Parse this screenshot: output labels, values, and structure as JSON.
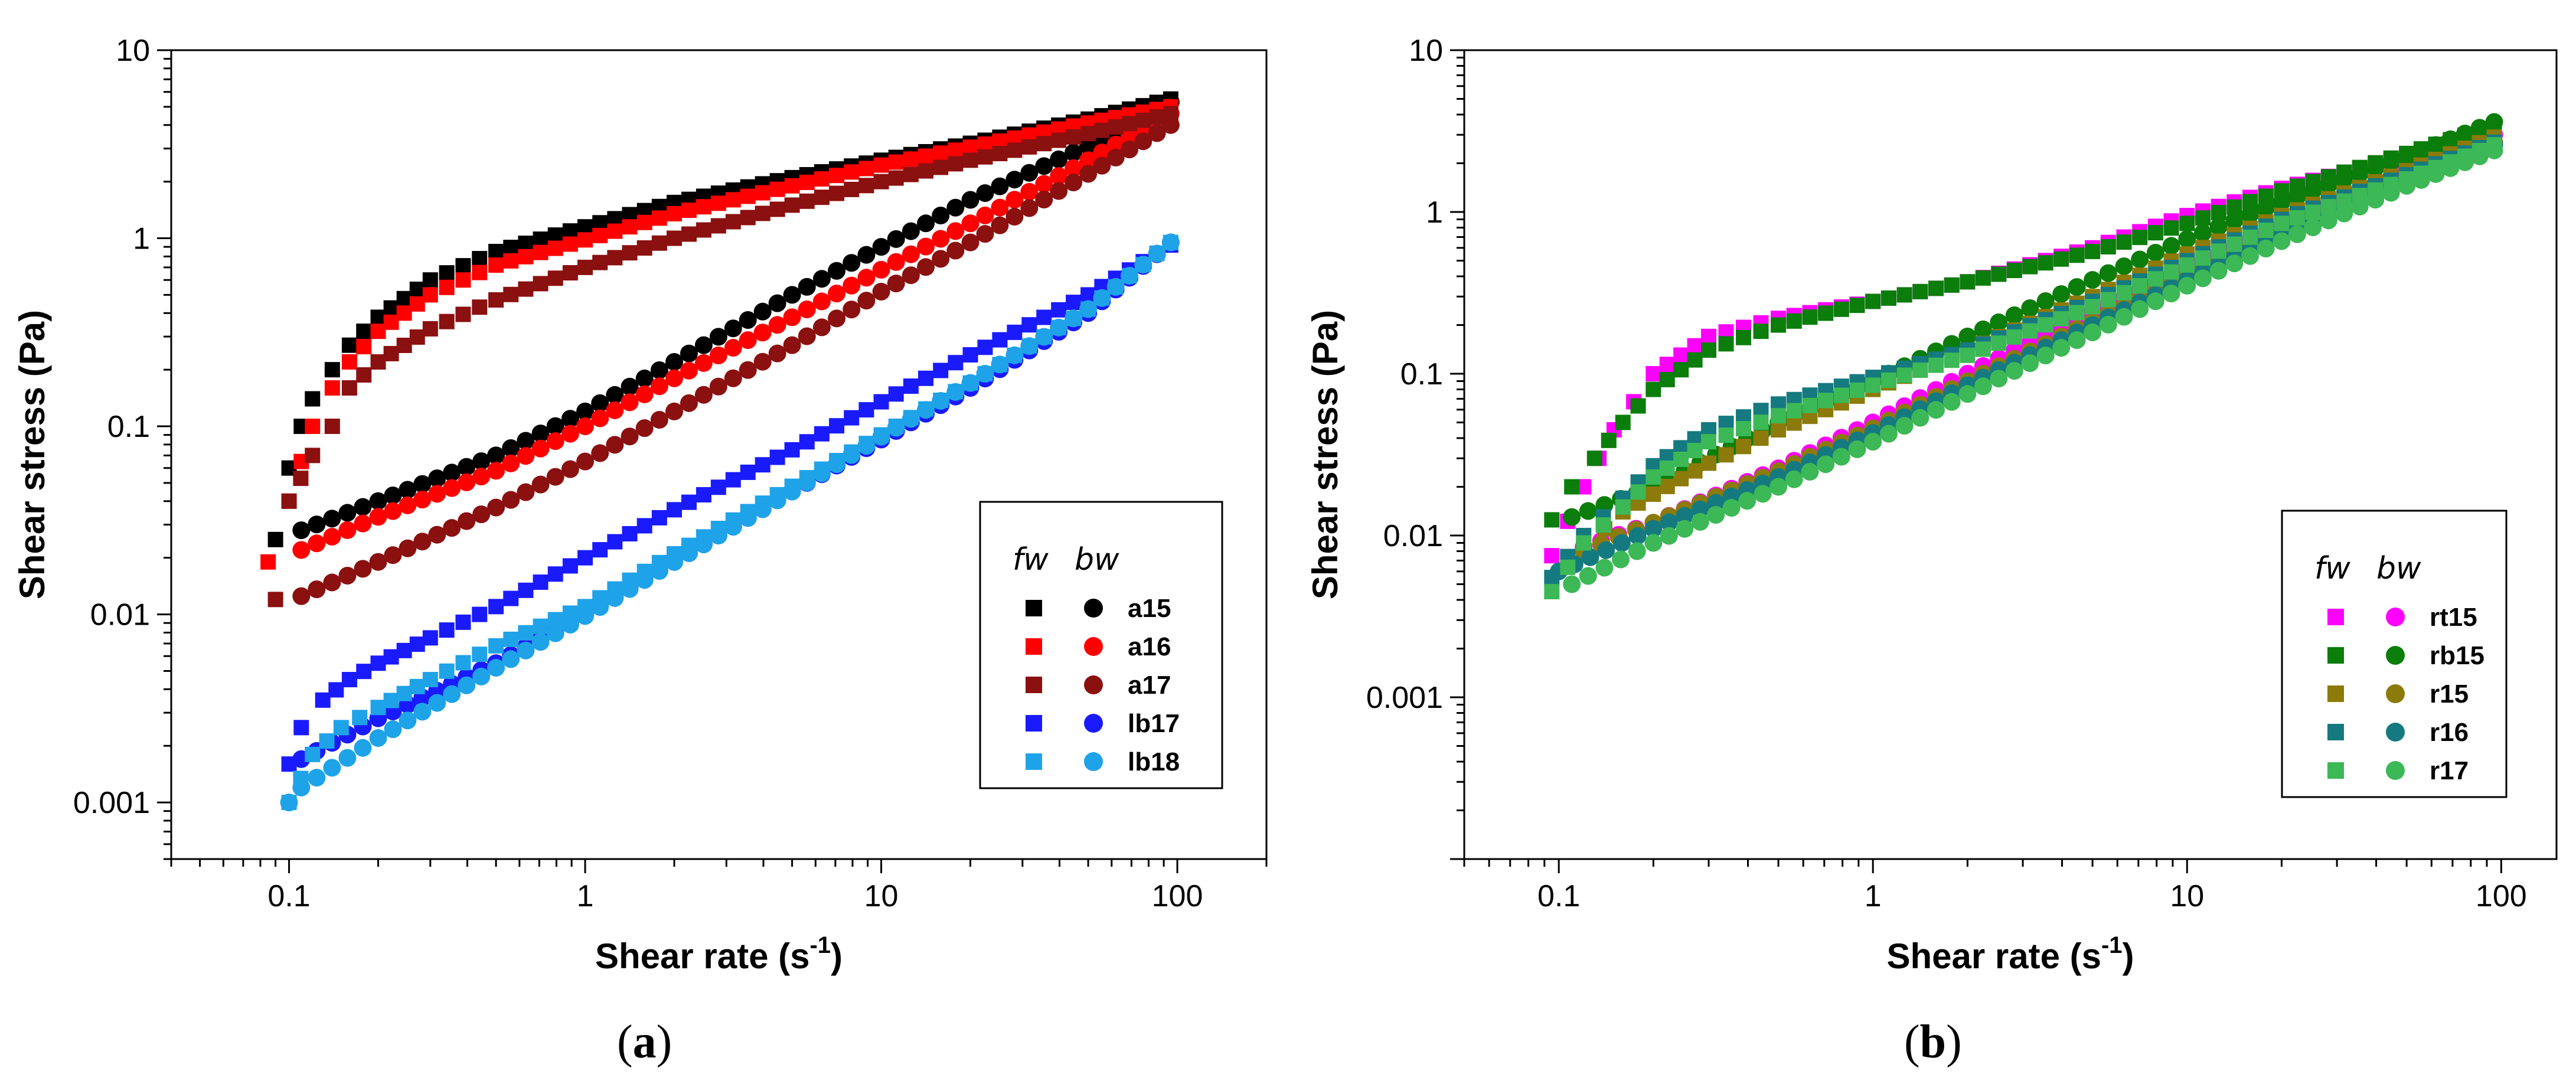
{
  "figure": {
    "panels": [
      {
        "caption_letter": "a",
        "chart_data": {
          "type": "scatter",
          "scale": "log-log",
          "xlabel": "Shear rate (s",
          "xlabel_sup": "-1",
          "xlabel_close": ")",
          "ylabel": "Shear stress (Pa)",
          "xlim": [
            0.04,
            200
          ],
          "ylim": [
            0.0005,
            10
          ],
          "xticks": [
            0.1,
            1,
            10,
            100
          ],
          "xtick_labels": [
            "0.1",
            "1",
            "10",
            "100"
          ],
          "yticks": [
            0.001,
            0.01,
            0.1,
            1,
            10
          ],
          "ytick_labels": [
            "0.001",
            "0.01",
            "0.1",
            "1",
            "10"
          ],
          "legend": {
            "position": "bottom-right",
            "header_fw": "fw",
            "header_bw": "bw",
            "entries": [
              "a15",
              "a16",
              "a17",
              "lb17",
              "lb18"
            ]
          },
          "series": [
            {
              "name": "a15",
              "color": "#000000",
              "fw": {
                "x": [
                  0.09,
                  0.1,
                  0.11,
                  0.12,
                  0.14,
                  0.16,
                  0.2,
                  0.3,
                  0.5,
                  1,
                  2,
                  5,
                  10,
                  20,
                  50,
                  95
                ],
                "y": [
                  0.025,
                  0.06,
                  0.1,
                  0.14,
                  0.2,
                  0.27,
                  0.38,
                  0.6,
                  0.85,
                  1.15,
                  1.55,
                  2.1,
                  2.6,
                  3.2,
                  4.3,
                  5.5
                ]
              },
              "bw": {
                "x": [
                  0.11,
                  0.2,
                  0.5,
                  1,
                  2,
                  5,
                  10,
                  20,
                  50,
                  95
                ],
                "y": [
                  0.028,
                  0.04,
                  0.07,
                  0.12,
                  0.22,
                  0.5,
                  0.9,
                  1.6,
                  3.1,
                  5.3
                ]
              }
            },
            {
              "name": "a16",
              "color": "#ff0000",
              "fw": {
                "x": [
                  0.085,
                  0.1,
                  0.11,
                  0.12,
                  0.14,
                  0.16,
                  0.2,
                  0.3,
                  0.5,
                  1,
                  2,
                  5,
                  10,
                  20,
                  50,
                  95
                ],
                "y": [
                  0.019,
                  0.04,
                  0.065,
                  0.1,
                  0.16,
                  0.22,
                  0.32,
                  0.5,
                  0.72,
                  0.98,
                  1.35,
                  1.9,
                  2.45,
                  3.05,
                  4.1,
                  5.0
                ]
              },
              "bw": {
                "x": [
                  0.11,
                  0.2,
                  0.5,
                  1,
                  2,
                  5,
                  10,
                  20,
                  50,
                  95
                ],
                "y": [
                  0.022,
                  0.033,
                  0.058,
                  0.1,
                  0.18,
                  0.38,
                  0.68,
                  1.2,
                  2.6,
                  4.6
                ]
              }
            },
            {
              "name": "a17",
              "color": "#8b1010",
              "fw": {
                "x": [
                  0.09,
                  0.1,
                  0.12,
                  0.14,
                  0.16,
                  0.2,
                  0.3,
                  0.5,
                  1,
                  2,
                  5,
                  10,
                  20,
                  50,
                  95
                ],
                "y": [
                  0.012,
                  0.04,
                  0.07,
                  0.1,
                  0.16,
                  0.22,
                  0.33,
                  0.47,
                  0.7,
                  1.0,
                  1.5,
                  2.0,
                  2.6,
                  3.6,
                  4.6
                ]
              },
              "bw": {
                "x": [
                  0.11,
                  0.2,
                  0.5,
                  1,
                  2,
                  5,
                  10,
                  20,
                  50,
                  95
                ],
                "y": [
                  0.0125,
                  0.019,
                  0.037,
                  0.065,
                  0.12,
                  0.27,
                  0.52,
                  0.95,
                  2.2,
                  4.0
                ]
              }
            },
            {
              "name": "lb17",
              "color": "#1a1aff",
              "fw": {
                "x": [
                  0.1,
                  0.11,
                  0.13,
                  0.16,
                  0.2,
                  0.3,
                  0.5,
                  1,
                  2,
                  5,
                  10,
                  20,
                  50,
                  95
                ],
                "y": [
                  0.0016,
                  0.0025,
                  0.0035,
                  0.0045,
                  0.0055,
                  0.0075,
                  0.011,
                  0.02,
                  0.036,
                  0.075,
                  0.135,
                  0.24,
                  0.5,
                  0.92
                ]
              },
              "bw": {
                "x": [
                  0.11,
                  0.2,
                  0.5,
                  1,
                  2,
                  5,
                  10,
                  20,
                  50,
                  95
                ],
                "y": [
                  0.0017,
                  0.0028,
                  0.0055,
                  0.01,
                  0.019,
                  0.045,
                  0.085,
                  0.16,
                  0.4,
                  0.95
                ]
              }
            },
            {
              "name": "lb18",
              "color": "#1fa3e8",
              "fw": {
                "x": [
                  0.1,
                  0.12,
                  0.15,
                  0.2,
                  0.3,
                  0.5,
                  1,
                  2,
                  5,
                  10,
                  20,
                  50,
                  95
                ],
                "y": [
                  0.001,
                  0.0018,
                  0.0025,
                  0.0032,
                  0.0045,
                  0.0068,
                  0.011,
                  0.021,
                  0.048,
                  0.09,
                  0.17,
                  0.42,
                  0.95
                ]
              },
              "bw": {
                "x": [
                  0.1,
                  0.11,
                  0.2,
                  0.5,
                  1,
                  2,
                  5,
                  10,
                  20,
                  50,
                  95
                ],
                "y": [
                  0.001,
                  0.0012,
                  0.0022,
                  0.0052,
                  0.0098,
                  0.019,
                  0.045,
                  0.088,
                  0.17,
                  0.42,
                  0.95
                ]
              }
            }
          ]
        }
      },
      {
        "caption_letter": "b",
        "chart_data": {
          "type": "scatter",
          "scale": "log-log",
          "xlabel": "Shear rate (s",
          "xlabel_sup": "-1",
          "xlabel_close": ")",
          "ylabel": "Shear stress (Pa)",
          "xlim": [
            0.05,
            150
          ],
          "ylim": [
            0.0001,
            10
          ],
          "xticks": [
            0.1,
            1,
            10,
            100
          ],
          "xtick_labels": [
            "0.1",
            "1",
            "10",
            "100"
          ],
          "yticks": [
            0.001,
            0.01,
            0.1,
            1,
            10
          ],
          "ytick_labels": [
            "0.001",
            "0.01",
            "0.1",
            "1",
            "10"
          ],
          "legend": {
            "position": "bottom-right",
            "header_fw": "fw",
            "header_bw": "bw",
            "entries": [
              "rt15",
              "rb15",
              "r15",
              "r16",
              "r17"
            ]
          },
          "series": [
            {
              "name": "rt15",
              "color": "#ff00ff",
              "fw": {
                "x": [
                  0.095,
                  0.12,
                  0.15,
                  0.2,
                  0.3,
                  0.5,
                  1,
                  2,
                  5,
                  10,
                  20,
                  50,
                  95
                ],
                "y": [
                  0.0075,
                  0.02,
                  0.045,
                  0.1,
                  0.17,
                  0.22,
                  0.28,
                  0.37,
                  0.6,
                  0.95,
                  1.4,
                  2.2,
                  3.1
                ]
              },
              "bw": {
                "x": [
                  0.12,
                  0.2,
                  0.5,
                  1,
                  2,
                  5,
                  10,
                  20,
                  50,
                  95
                ],
                "y": [
                  0.0085,
                  0.012,
                  0.026,
                  0.05,
                  0.1,
                  0.24,
                  0.45,
                  0.82,
                  1.8,
                  3.0
                ]
              }
            },
            {
              "name": "rb15",
              "color": "#0b7d0b",
              "fw": {
                "x": [
                  0.095,
                  0.11,
                  0.13,
                  0.16,
                  0.2,
                  0.3,
                  0.5,
                  1,
                  2,
                  5,
                  10,
                  20,
                  50,
                  95
                ],
                "y": [
                  0.0125,
                  0.02,
                  0.03,
                  0.05,
                  0.08,
                  0.14,
                  0.2,
                  0.28,
                  0.37,
                  0.57,
                  0.85,
                  1.35,
                  2.3,
                  3.4
                ]
              },
              "bw": {
                "x": [
                  0.11,
                  0.2,
                  0.5,
                  1,
                  2,
                  5,
                  10,
                  20,
                  50,
                  95
                ],
                "y": [
                  0.013,
                  0.02,
                  0.05,
                  0.09,
                  0.17,
                  0.38,
                  0.68,
                  1.15,
                  2.2,
                  3.6
                ]
              }
            },
            {
              "name": "r15",
              "color": "#8c7a0a",
              "fw": {
                "x": [
                  0.12,
                  0.14,
                  0.16,
                  0.2,
                  0.3,
                  0.5,
                  1,
                  2,
                  5,
                  10,
                  20,
                  50,
                  95
                ],
                "y": [
                  0.008,
                  0.011,
                  0.014,
                  0.018,
                  0.028,
                  0.045,
                  0.08,
                  0.14,
                  0.3,
                  0.55,
                  0.95,
                  1.8,
                  2.9
                ]
              },
              "bw": {
                "x": [
                  0.12,
                  0.2,
                  0.5,
                  1,
                  2,
                  5,
                  10,
                  20,
                  50,
                  95
                ],
                "y": [
                  0.008,
                  0.012,
                  0.025,
                  0.046,
                  0.09,
                  0.21,
                  0.4,
                  0.75,
                  1.6,
                  2.7
                ]
              }
            },
            {
              "name": "r16",
              "color": "#157a80",
              "fw": {
                "x": [
                  0.095,
                  0.12,
                  0.16,
                  0.2,
                  0.3,
                  0.5,
                  1,
                  2,
                  5,
                  10,
                  20,
                  50,
                  95
                ],
                "y": [
                  0.0055,
                  0.01,
                  0.017,
                  0.027,
                  0.045,
                  0.065,
                  0.095,
                  0.14,
                  0.28,
                  0.5,
                  0.9,
                  1.7,
                  2.7
                ]
              },
              "bw": {
                "x": [
                  0.1,
                  0.2,
                  0.5,
                  1,
                  2,
                  5,
                  10,
                  20,
                  50,
                  95
                ],
                "y": [
                  0.006,
                  0.011,
                  0.023,
                  0.043,
                  0.085,
                  0.2,
                  0.38,
                  0.72,
                  1.55,
                  2.6
                ]
              }
            },
            {
              "name": "r17",
              "color": "#3cb856",
              "fw": {
                "x": [
                  0.095,
                  0.12,
                  0.16,
                  0.2,
                  0.3,
                  0.5,
                  1,
                  2,
                  5,
                  10,
                  20,
                  50,
                  95
                ],
                "y": [
                  0.0045,
                  0.009,
                  0.015,
                  0.023,
                  0.038,
                  0.055,
                  0.085,
                  0.13,
                  0.26,
                  0.47,
                  0.85,
                  1.6,
                  2.6
                ]
              },
              "bw": {
                "x": [
                  0.11,
                  0.2,
                  0.5,
                  1,
                  2,
                  5,
                  10,
                  20,
                  50,
                  95
                ],
                "y": [
                  0.005,
                  0.009,
                  0.02,
                  0.038,
                  0.075,
                  0.18,
                  0.35,
                  0.66,
                  1.45,
                  2.4
                ]
              }
            }
          ]
        }
      }
    ]
  }
}
